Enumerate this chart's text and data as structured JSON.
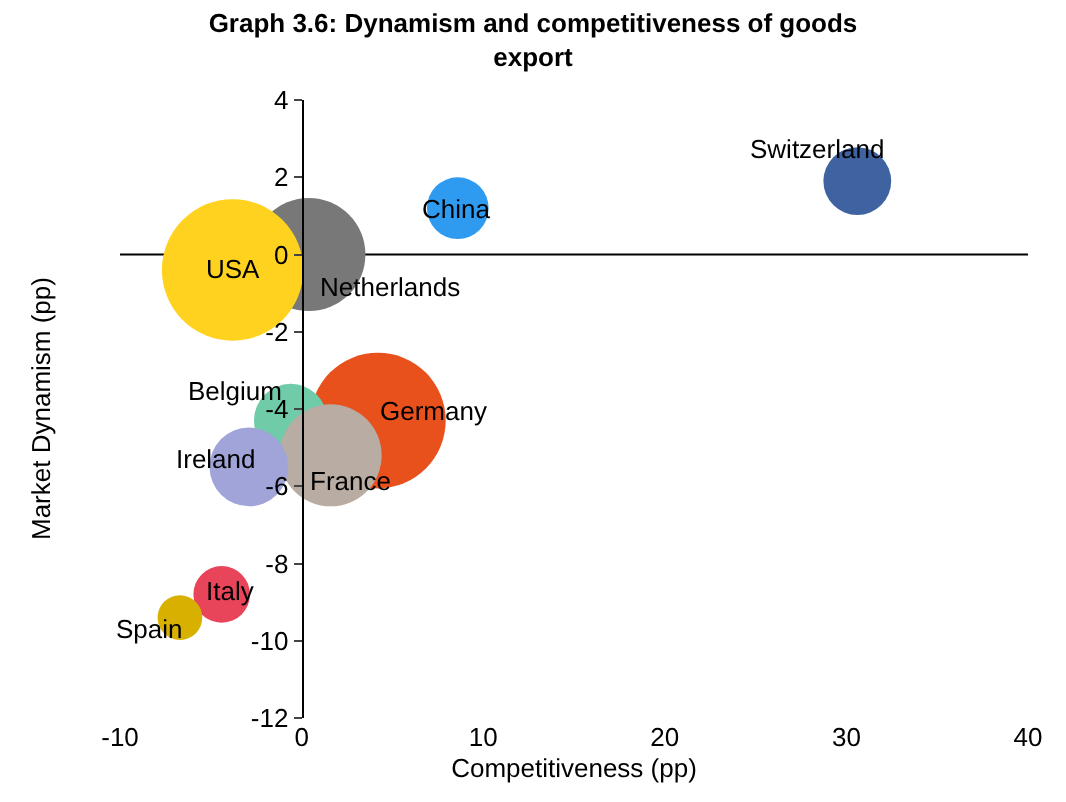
{
  "chart_data": {
    "type": "bubble",
    "title": "Graph 3.6: Dynamism and competitiveness of goods export",
    "xlabel": "Competitiveness (pp)",
    "ylabel": "Market Dynamism (pp)",
    "xlim": [
      -10,
      40
    ],
    "xticks": [
      -10,
      0,
      10,
      20,
      30,
      40
    ],
    "ylim": [
      -12,
      4
    ],
    "yticks": [
      -12,
      -10,
      -8,
      -6,
      -4,
      -2,
      0,
      2,
      4
    ],
    "grid": false,
    "legend": false,
    "ref_lines": [
      {
        "axis": "y",
        "value": 0,
        "color": "#000000"
      }
    ],
    "series": [
      {
        "name": "Switzerland",
        "color": "#3f62a0",
        "x": [
          30.6
        ],
        "values": [
          1.9
        ],
        "sizes": [
          0.23
        ]
      },
      {
        "name": "China",
        "color": "#2e9af0",
        "x": [
          8.6
        ],
        "values": [
          1.2
        ],
        "sizes": [
          0.19
        ]
      },
      {
        "name": "Netherlands",
        "color": "#787878",
        "x": [
          0.4
        ],
        "values": [
          0.0
        ],
        "sizes": [
          0.64
        ]
      },
      {
        "name": "USA",
        "color": "#ffd21f",
        "x": [
          -3.8
        ],
        "values": [
          -0.4
        ],
        "sizes": [
          1
        ]
      },
      {
        "name": "Germany",
        "color": "#e8501c",
        "x": [
          4.2
        ],
        "values": [
          -4.3
        ],
        "sizes": [
          0.92
        ]
      },
      {
        "name": "Belgium",
        "color": "#6fcba8",
        "x": [
          -0.6
        ],
        "values": [
          -4.3
        ],
        "sizes": [
          0.27
        ]
      },
      {
        "name": "France",
        "color": "#b8aca3",
        "x": [
          1.6
        ],
        "values": [
          -5.2
        ],
        "sizes": [
          0.52
        ]
      },
      {
        "name": "Ireland",
        "color": "#a0a4d8",
        "x": [
          -2.9
        ],
        "values": [
          -5.5
        ],
        "sizes": [
          0.31
        ]
      },
      {
        "name": "Italy",
        "color": "#e8445a",
        "x": [
          -4.4
        ],
        "values": [
          -8.8
        ],
        "sizes": [
          0.16
        ]
      },
      {
        "name": "Spain",
        "color": "#d8b000",
        "x": [
          -6.7
        ],
        "values": [
          -9.4
        ],
        "sizes": [
          0.1
        ]
      }
    ]
  }
}
